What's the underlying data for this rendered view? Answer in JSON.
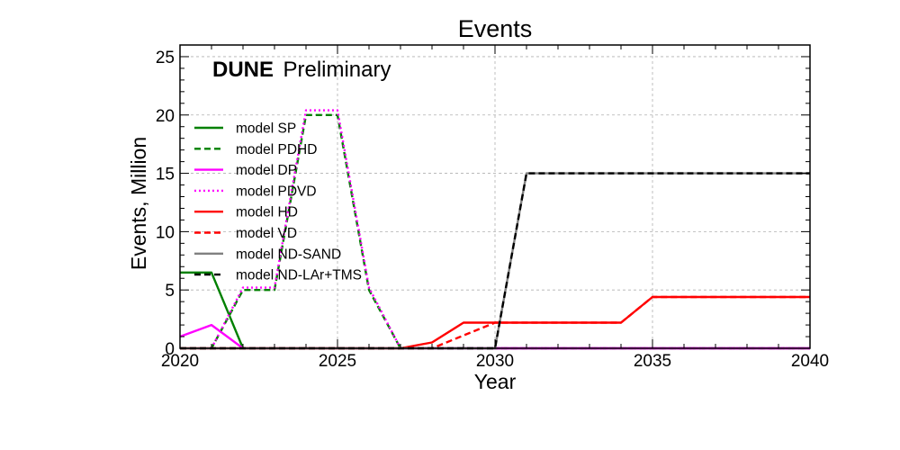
{
  "chart_data": {
    "type": "line",
    "title": "Events",
    "xlabel": "Year",
    "ylabel": "Events, Million",
    "xlim": [
      2020,
      2040
    ],
    "ylim": [
      0,
      26
    ],
    "xticks": [
      2020,
      2025,
      2030,
      2035,
      2040
    ],
    "yticks": [
      0,
      5,
      10,
      15,
      20,
      25
    ],
    "grid": true,
    "legend_position": "upper-left",
    "watermark": {
      "brand": "DUNE",
      "text": "Preliminary"
    },
    "series": [
      {
        "name": "model SP",
        "color": "#008000",
        "style": "solid",
        "x": [
          2020,
          2021,
          2022,
          2040
        ],
        "y": [
          6.5,
          6.5,
          0,
          0
        ]
      },
      {
        "name": "model PDHD",
        "color": "#008000",
        "style": "dashed",
        "x": [
          2020,
          2021,
          2022,
          2023,
          2024,
          2025,
          2026,
          2027,
          2040
        ],
        "y": [
          0,
          0,
          5,
          5,
          20,
          20,
          5,
          0,
          0
        ]
      },
      {
        "name": "model DP",
        "color": "#ff00ff",
        "style": "solid",
        "x": [
          2020,
          2021,
          2022,
          2040
        ],
        "y": [
          1,
          2,
          0,
          0
        ]
      },
      {
        "name": "model PDVD",
        "color": "#ff00ff",
        "style": "dotted",
        "x": [
          2020,
          2021,
          2022,
          2023,
          2024,
          2025,
          2026,
          2027,
          2040
        ],
        "y": [
          0,
          0,
          5.2,
          5.2,
          20.4,
          20.4,
          5.2,
          0,
          0
        ]
      },
      {
        "name": "model HD",
        "color": "#ff0000",
        "style": "solid",
        "x": [
          2020,
          2027,
          2028,
          2029,
          2034,
          2035,
          2040
        ],
        "y": [
          0,
          0,
          0.5,
          2.2,
          2.2,
          4.4,
          4.4
        ]
      },
      {
        "name": "model VD",
        "color": "#ff0000",
        "style": "dashed",
        "x": [
          2020,
          2028,
          2030,
          2034,
          2035,
          2040
        ],
        "y": [
          0,
          0,
          2.2,
          2.2,
          4.4,
          4.4
        ]
      },
      {
        "name": "model ND-SAND",
        "color": "#808080",
        "style": "solid",
        "x": [
          2020,
          2030,
          2031,
          2040
        ],
        "y": [
          0,
          0,
          15,
          15
        ]
      },
      {
        "name": "model ND-LAr+TMS",
        "color": "#000000",
        "style": "dashed",
        "x": [
          2020,
          2030,
          2031,
          2040
        ],
        "y": [
          0,
          0,
          15,
          15
        ]
      }
    ]
  }
}
